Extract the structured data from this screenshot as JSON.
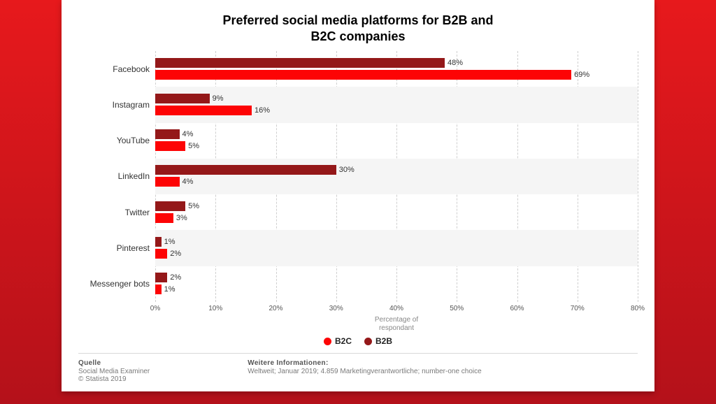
{
  "background": {
    "gradient_from": "#e7191c",
    "gradient_to": "#b4111a"
  },
  "panel_bg": "#ffffff",
  "title_line1": "Preferred social media platforms for B2B and",
  "title_line2": "B2C companies",
  "title_fontsize": 18,
  "chart": {
    "type": "grouped-horizontal-bar",
    "xmax": 80,
    "xtick_step": 10,
    "xticks": [
      "0%",
      "10%",
      "20%",
      "30%",
      "40%",
      "50%",
      "60%",
      "70%",
      "80%"
    ],
    "xlabel_line1": "Percentage of",
    "xlabel_line2": "respondant",
    "alt_row_bg": "#f5f5f5",
    "gridline_color": "#cfcfcf",
    "categories": [
      {
        "label": "Facebook",
        "b2b": 48,
        "b2c": 69
      },
      {
        "label": "Instagram",
        "b2b": 9,
        "b2c": 16
      },
      {
        "label": "YouTube",
        "b2b": 4,
        "b2c": 5
      },
      {
        "label": "LinkedIn",
        "b2b": 30,
        "b2c": 4
      },
      {
        "label": "Twitter",
        "b2b": 5,
        "b2c": 3
      },
      {
        "label": "Pinterest",
        "b2b": 1,
        "b2c": 2
      },
      {
        "label": "Messenger bots",
        "b2b": 2,
        "b2c": 1
      }
    ],
    "series": {
      "b2b": {
        "label": "B2B",
        "color": "#941819"
      },
      "b2c": {
        "label": "B2C",
        "color": "#fd0405"
      }
    }
  },
  "footer": {
    "source_heading": "Quelle",
    "source_line1": "Social Media Examiner",
    "source_line2": "© Statista 2019",
    "info_heading": "Weitere Informationen:",
    "info_line1": "Weltweit; Januar 2019; 4.859 Marketingverantwortliche; number-one choice"
  }
}
